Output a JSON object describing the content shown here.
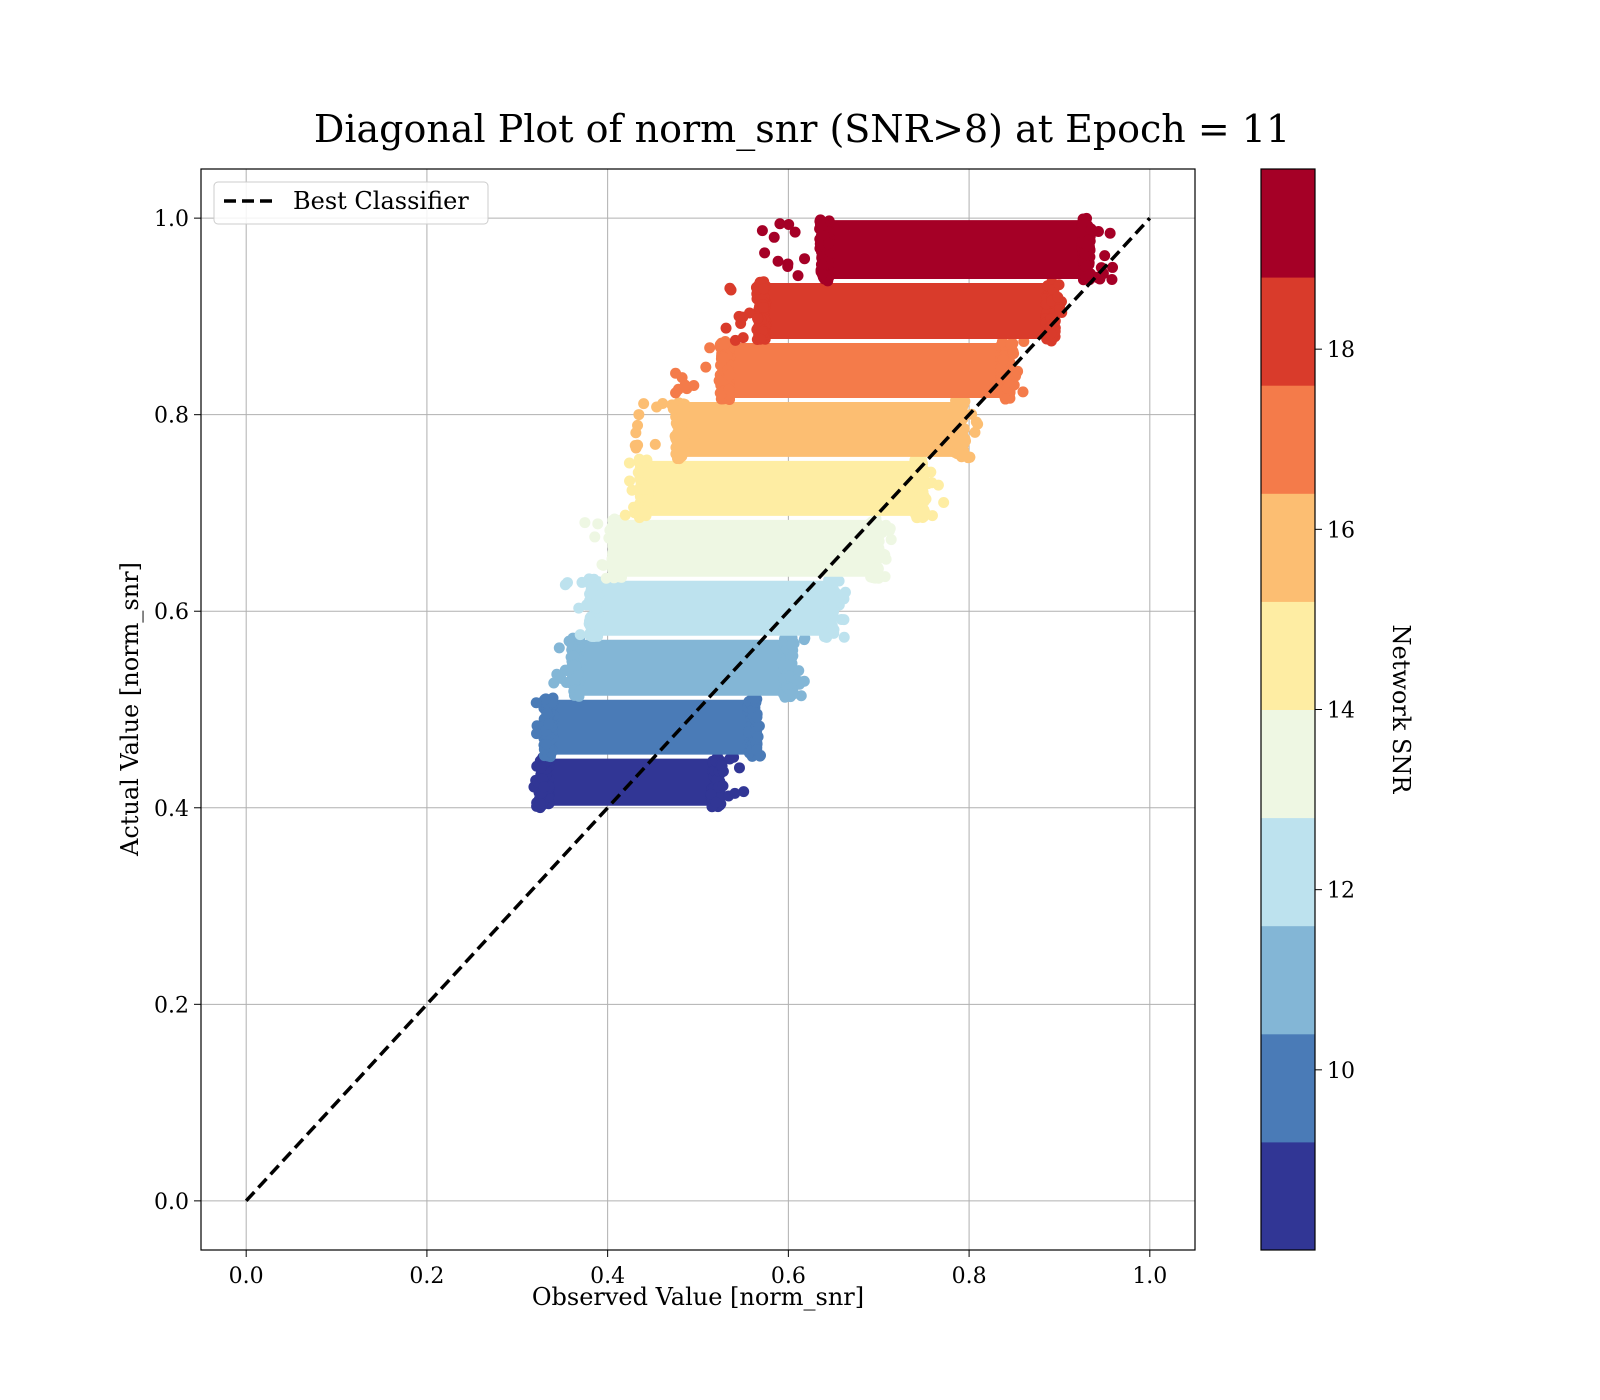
{
  "chart_data": {
    "type": "scatter",
    "title": "Diagonal Plot of norm_snr (SNR>8) at Epoch = 11",
    "xlabel": "Observed Value [norm_snr]",
    "ylabel": "Actual Value [norm_snr]",
    "xlim": [
      -0.05,
      1.05
    ],
    "ylim": [
      -0.05,
      1.05
    ],
    "xticks": [
      0.0,
      0.2,
      0.4,
      0.6,
      0.8,
      1.0
    ],
    "yticks": [
      0.0,
      0.2,
      0.4,
      0.6,
      0.8,
      1.0
    ],
    "xtick_labels": [
      "0.0",
      "0.2",
      "0.4",
      "0.6",
      "0.8",
      "1.0"
    ],
    "ytick_labels": [
      "0.0",
      "0.2",
      "0.4",
      "0.6",
      "0.8",
      "1.0"
    ],
    "grid": true,
    "legend": {
      "placement": "upper-left",
      "entries": [
        {
          "label": "Best Classifier",
          "style": "dashed",
          "color": "#000000"
        }
      ]
    },
    "reference_line": {
      "name": "Best Classifier",
      "x": [
        0.0,
        1.0
      ],
      "y": [
        0.0,
        1.0
      ],
      "style": "dashed",
      "color": "#000000"
    },
    "colorbar": {
      "label": "Network SNR",
      "range": [
        8,
        20
      ],
      "ticks": [
        10,
        12,
        14,
        16,
        18
      ],
      "tick_labels": [
        "10",
        "12",
        "14",
        "16",
        "18"
      ],
      "colors": [
        "#313695",
        "#4575b4",
        "#74add1",
        "#abd9e9",
        "#e0f3f8",
        "#fee090",
        "#fdae61",
        "#f46d43",
        "#d73027",
        "#a50026"
      ],
      "display_colors": [
        "#313695",
        "#4a7bb7",
        "#83b6d6",
        "#bde2ee",
        "#eef7e3",
        "#feeda3",
        "#fcbe72",
        "#f47b4a",
        "#d93b2b",
        "#a50026"
      ]
    },
    "scatter_bands": [
      {
        "snr": [
          8.0,
          9.2
        ],
        "color": "#313695",
        "y": [
          0.4,
          0.452
        ],
        "core_x": [
          0.33,
          0.52
        ],
        "spread_x": [
          0.315,
          0.555
        ]
      },
      {
        "snr": [
          9.2,
          10.4
        ],
        "color": "#4a7bb7",
        "y": [
          0.452,
          0.512
        ],
        "core_x": [
          0.335,
          0.56
        ],
        "spread_x": [
          0.32,
          0.57
        ]
      },
      {
        "snr": [
          10.4,
          11.6
        ],
        "color": "#83b6d6",
        "y": [
          0.512,
          0.573
        ],
        "core_x": [
          0.365,
          0.6
        ],
        "spread_x": [
          0.335,
          0.62
        ]
      },
      {
        "snr": [
          11.6,
          12.8
        ],
        "color": "#bde2ee",
        "y": [
          0.573,
          0.633
        ],
        "core_x": [
          0.385,
          0.645
        ],
        "spread_x": [
          0.35,
          0.665
        ]
      },
      {
        "snr": [
          12.8,
          14.0
        ],
        "color": "#eef7e3",
        "y": [
          0.633,
          0.695
        ],
        "core_x": [
          0.41,
          0.695
        ],
        "spread_x": [
          0.37,
          0.715
        ]
      },
      {
        "snr": [
          14.0,
          15.2
        ],
        "color": "#feeda3",
        "y": [
          0.695,
          0.755
        ],
        "core_x": [
          0.44,
          0.745
        ],
        "spread_x": [
          0.415,
          0.775
        ]
      },
      {
        "snr": [
          15.2,
          16.4
        ],
        "color": "#fcbe72",
        "y": [
          0.755,
          0.815
        ],
        "core_x": [
          0.48,
          0.79
        ],
        "spread_x": [
          0.43,
          0.81
        ]
      },
      {
        "snr": [
          16.4,
          17.6
        ],
        "color": "#f47b4a",
        "y": [
          0.815,
          0.875
        ],
        "core_x": [
          0.53,
          0.84
        ],
        "spread_x": [
          0.47,
          0.865
        ]
      },
      {
        "snr": [
          17.6,
          18.8
        ],
        "color": "#d93b2b",
        "y": [
          0.875,
          0.936
        ],
        "core_x": [
          0.57,
          0.89
        ],
        "spread_x": [
          0.53,
          0.905
        ]
      },
      {
        "snr": [
          18.8,
          20.0
        ],
        "color": "#a50026",
        "y": [
          0.936,
          1.0
        ],
        "core_x": [
          0.64,
          0.93
        ],
        "spread_x": [
          0.57,
          0.96
        ]
      }
    ]
  }
}
